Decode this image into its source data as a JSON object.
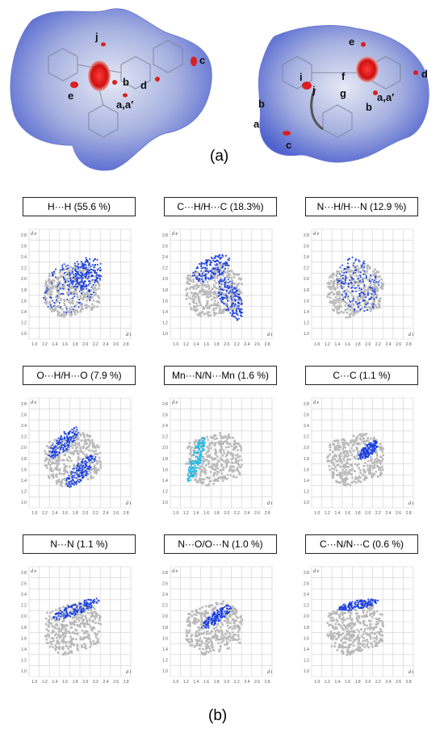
{
  "part_a": {
    "panel_label": "(a)",
    "left_surface_labels": [
      "j",
      "c",
      "b",
      "d",
      "e",
      "a,a′"
    ],
    "right_surface_labels": [
      "e",
      "d",
      "i",
      "j",
      "f",
      "g",
      "a,a′",
      "b",
      "b",
      "a",
      "c"
    ]
  },
  "part_b": {
    "panel_label": "(b)",
    "tick_labels": [
      "1.0",
      "1.2",
      "1.4",
      "1.6",
      "1.8",
      "2.0",
      "2.2",
      "2.4",
      "2.6",
      "2.8"
    ],
    "x_axis_label": "d i",
    "y_axis_label": "d e",
    "plots": [
      {
        "caption": "H···H (55.6 %)"
      },
      {
        "caption": "C···H/H···C (18.3%)"
      },
      {
        "caption": "N···H/H···N (12.9 %)"
      },
      {
        "caption": "O···H/H···O (7.9 %)"
      },
      {
        "caption": "Mn···N/N···Mn (1.6 %)"
      },
      {
        "caption": "C···C (1.1 %)"
      },
      {
        "caption": "N···N (1.1 %)"
      },
      {
        "caption": "N···O/O···N (1.0 %)"
      },
      {
        "caption": "C···N/N···C (0.6 %)"
      }
    ]
  },
  "colors": {
    "surface_blue": "#6f80d6",
    "hotspot_red": "#d81f1f",
    "fingerprint_grey": "#b9b9b9",
    "highlight_blue": "#1a3fe0",
    "highlight_cyan": "#19b9e8"
  }
}
